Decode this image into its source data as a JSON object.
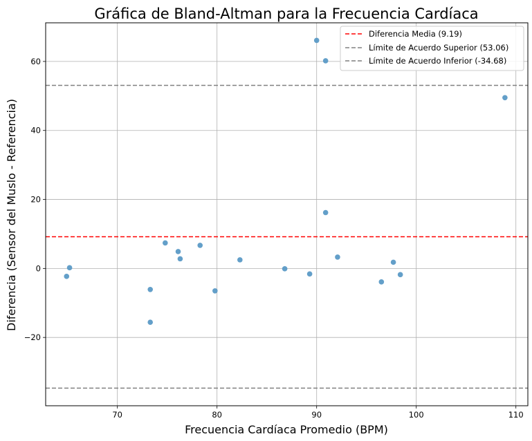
{
  "chart_data": {
    "type": "scatter",
    "title": "Gráfica de Bland-Altman para la Frecuencia Cardíaca",
    "xlabel": "Frecuencia Cardíaca Promedio (BPM)",
    "ylabel": "Diferencia (Sensor del Muslo - Referencia)",
    "xlim": [
      62.8,
      111.2
    ],
    "ylim": [
      -39.8,
      71.2
    ],
    "xticks": [
      70,
      80,
      90,
      100,
      110
    ],
    "yticks": [
      -20,
      0,
      20,
      40,
      60
    ],
    "xtick_labels": [
      "70",
      "80",
      "90",
      "100",
      "110"
    ],
    "ytick_labels": [
      "−20",
      "0",
      "20",
      "40",
      "60"
    ],
    "grid": true,
    "legend_position": "top-right",
    "point_color": "#5b9ac6",
    "points": [
      {
        "x": 64.9,
        "y": -2.3
      },
      {
        "x": 65.2,
        "y": 0.2
      },
      {
        "x": 73.3,
        "y": -6.1
      },
      {
        "x": 73.3,
        "y": -15.6
      },
      {
        "x": 74.8,
        "y": 7.4
      },
      {
        "x": 76.1,
        "y": 4.9
      },
      {
        "x": 76.3,
        "y": 2.8
      },
      {
        "x": 78.3,
        "y": 6.7
      },
      {
        "x": 79.8,
        "y": -6.5
      },
      {
        "x": 82.3,
        "y": 2.5
      },
      {
        "x": 86.8,
        "y": -0.1
      },
      {
        "x": 89.3,
        "y": -1.6
      },
      {
        "x": 90.0,
        "y": 66.1
      },
      {
        "x": 90.9,
        "y": 60.2
      },
      {
        "x": 90.9,
        "y": 16.2
      },
      {
        "x": 92.1,
        "y": 3.3
      },
      {
        "x": 96.5,
        "y": -3.9
      },
      {
        "x": 97.7,
        "y": 1.8
      },
      {
        "x": 98.4,
        "y": -1.8
      },
      {
        "x": 108.9,
        "y": 49.5
      }
    ],
    "reference_lines": [
      {
        "name": "Diferencia Media (9.19)",
        "y": 9.19,
        "color": "#ff0000"
      },
      {
        "name": "Límite de Acuerdo Superior (53.06)",
        "y": 53.06,
        "color": "#808080"
      },
      {
        "name": "Límite de Acuerdo Inferior (-34.68)",
        "y": -34.68,
        "color": "#808080"
      }
    ]
  }
}
